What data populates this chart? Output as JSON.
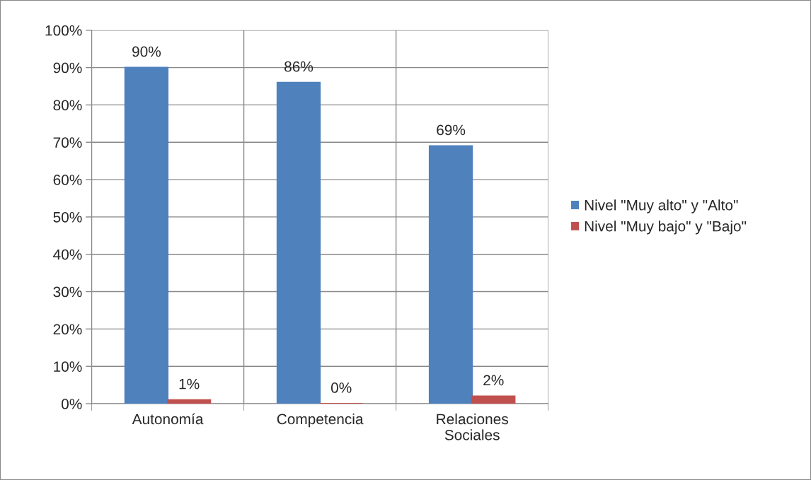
{
  "chart_data": {
    "type": "bar",
    "categories": [
      "Autonomía",
      "Competencia",
      "Relaciones Sociales"
    ],
    "series": [
      {
        "name": "Nivel \"Muy alto\" y \"Alto\"",
        "color": "#4f81bd",
        "values": [
          90,
          86,
          69
        ],
        "value_labels": [
          "90%",
          "86%",
          "69%"
        ]
      },
      {
        "name": "Nivel \"Muy bajo\" y \"Bajo\"",
        "color": "#c0504d",
        "values": [
          1,
          0,
          2
        ],
        "value_labels": [
          "1%",
          "0%",
          "2%"
        ]
      }
    ],
    "ylim": [
      0,
      100
    ],
    "yticks": [
      {
        "value": 0,
        "label": "0%"
      },
      {
        "value": 10,
        "label": "10%"
      },
      {
        "value": 20,
        "label": "20%"
      },
      {
        "value": 30,
        "label": "30%"
      },
      {
        "value": 40,
        "label": "40%"
      },
      {
        "value": 50,
        "label": "50%"
      },
      {
        "value": 60,
        "label": "60%"
      },
      {
        "value": 70,
        "label": "70%"
      },
      {
        "value": 80,
        "label": "80%"
      },
      {
        "value": 90,
        "label": "90%"
      },
      {
        "value": 100,
        "label": "100%"
      }
    ],
    "grid": true,
    "legend": "right"
  }
}
